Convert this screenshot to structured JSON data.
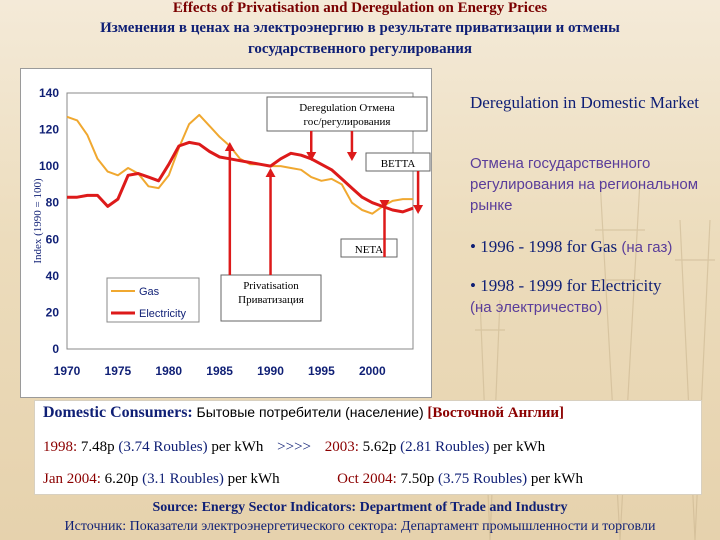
{
  "title": {
    "en": "Effects of Privatisation and Deregulation on Energy Prices",
    "ru": "Изменения в ценах на электроэнергию в результате приватизации и отмены государственного регулирования"
  },
  "chart_data": {
    "type": "line",
    "ylabel": "Index (1990 = 100)",
    "ylim": [
      0,
      140
    ],
    "yticks": [
      0,
      20,
      40,
      60,
      80,
      100,
      120,
      140
    ],
    "xlim": [
      1970,
      2004
    ],
    "xticks": [
      1970,
      1975,
      1980,
      1985,
      1990,
      1995,
      2000
    ],
    "legend_placement": "left",
    "series": [
      {
        "name": "Gas",
        "color": "#f0a830",
        "points": [
          [
            1970,
            127
          ],
          [
            1971,
            125
          ],
          [
            1972,
            117
          ],
          [
            1973,
            104
          ],
          [
            1974,
            97
          ],
          [
            1975,
            95
          ],
          [
            1976,
            99
          ],
          [
            1977,
            96
          ],
          [
            1978,
            89
          ],
          [
            1979,
            88
          ],
          [
            1980,
            95
          ],
          [
            1981,
            110
          ],
          [
            1982,
            123
          ],
          [
            1983,
            128
          ],
          [
            1984,
            122
          ],
          [
            1985,
            116
          ],
          [
            1986,
            111
          ],
          [
            1987,
            104
          ],
          [
            1988,
            101
          ],
          [
            1989,
            101
          ],
          [
            1990,
            100
          ],
          [
            1991,
            100
          ],
          [
            1992,
            99
          ],
          [
            1993,
            98
          ],
          [
            1994,
            94
          ],
          [
            1995,
            92
          ],
          [
            1996,
            93
          ],
          [
            1997,
            90
          ],
          [
            1998,
            80
          ],
          [
            1999,
            76
          ],
          [
            2000,
            74
          ],
          [
            2001,
            78
          ],
          [
            2002,
            81
          ],
          [
            2003,
            82
          ],
          [
            2004,
            82
          ]
        ]
      },
      {
        "name": "Electricity",
        "color": "#dd1a1a",
        "points": [
          [
            1970,
            83
          ],
          [
            1971,
            83
          ],
          [
            1972,
            84
          ],
          [
            1973,
            84
          ],
          [
            1974,
            78
          ],
          [
            1975,
            82
          ],
          [
            1976,
            95
          ],
          [
            1977,
            96
          ],
          [
            1978,
            94
          ],
          [
            1979,
            92
          ],
          [
            1980,
            101
          ],
          [
            1981,
            111
          ],
          [
            1982,
            113
          ],
          [
            1983,
            112
          ],
          [
            1984,
            108
          ],
          [
            1985,
            105
          ],
          [
            1986,
            104
          ],
          [
            1987,
            103
          ],
          [
            1988,
            102
          ],
          [
            1989,
            101
          ],
          [
            1990,
            100
          ],
          [
            1991,
            104
          ],
          [
            1992,
            107
          ],
          [
            1993,
            106
          ],
          [
            1994,
            104
          ],
          [
            1995,
            101
          ],
          [
            1996,
            98
          ],
          [
            1997,
            93
          ],
          [
            1998,
            88
          ],
          [
            1999,
            83
          ],
          [
            2000,
            80
          ],
          [
            2001,
            78
          ],
          [
            2002,
            76
          ],
          [
            2003,
            75
          ],
          [
            2004,
            77
          ]
        ]
      }
    ],
    "annotations": [
      {
        "name": "deregulation",
        "text": "Deregulation Отмена гос/регулирования",
        "arrow_x": [
          1994,
          1998
        ]
      },
      {
        "name": "betta",
        "text": "BETTA",
        "arrow_x": [
          2004.5
        ]
      },
      {
        "name": "neta",
        "text": "NETA",
        "arrow_x": [
          2001.2
        ]
      },
      {
        "name": "privatisation",
        "text": "Privatisation Приватизация",
        "arrow_x": [
          1986,
          1990
        ]
      }
    ]
  },
  "right_panel": {
    "deregulation_en": "Deregulation in Domestic Market",
    "deregulation_ru": "Отмена государственного регулирования на региональном рынке",
    "gas_en": "• 1996 - 1998 for Gas",
    "gas_ru": "(на газ)",
    "elec_en": "• 1998 - 1999 for Electricity",
    "elec_ru": "(на электричество)"
  },
  "consumers": {
    "heading": "Domestic Consumers:",
    "heading_ru": "Бытовые потребители (население)",
    "region": "[Восточной Англии]",
    "row1_left_year": "1998:",
    "row1_left_price": "7.48p",
    "row1_left_roubles": "(3.74 Roubles)",
    "row1_left_unit": "per kWh",
    "arrow": ">>>>",
    "row1_right_year": "2003:",
    "row1_right_price": "5.62p",
    "row1_right_roubles": "(2.81 Roubles)",
    "row1_right_unit": "per kWh",
    "row2_left_date": "Jan 2004:",
    "row2_left_price": "6.20p",
    "row2_left_roubles": "(3.1 Roubles)",
    "row2_left_unit": "per kWh",
    "row2_right_date": "Oct 2004:",
    "row2_right_price": "7.50p",
    "row2_right_roubles": "(3.75 Roubles)",
    "row2_right_unit": "per kWh"
  },
  "source": {
    "en": "Source: Energy Sector Indicators: Department of Trade and Industry",
    "ru": "Источник: Показатели электроэнергетического сектора: Департамент промышленности и торговли"
  }
}
